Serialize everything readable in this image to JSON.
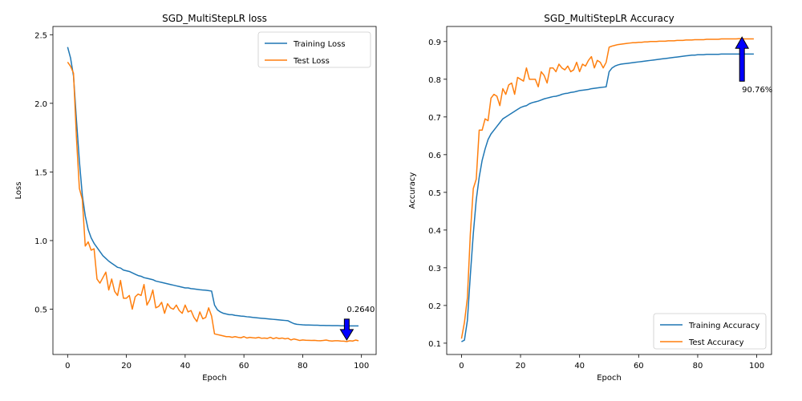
{
  "chart_data": [
    {
      "type": "line",
      "title": "SGD_MultiStepLR loss",
      "xlabel": "Epoch",
      "ylabel": "Loss",
      "xlim": [
        -5,
        105
      ],
      "ylim": [
        0.17,
        2.56
      ],
      "xticks": [
        0,
        20,
        40,
        60,
        80,
        100
      ],
      "xtick_labels": [
        "0",
        "20",
        "40",
        "60",
        "80",
        "100"
      ],
      "yticks": [
        0.5,
        1.0,
        1.5,
        2.0,
        2.5
      ],
      "ytick_labels": [
        "0.5",
        "1.0",
        "1.5",
        "2.0",
        "2.5"
      ],
      "legend_position": "upper-right",
      "series": [
        {
          "name": "Training Loss",
          "color": "#1f77b4",
          "values": [
            2.41,
            2.33,
            2.2,
            1.88,
            1.58,
            1.33,
            1.18,
            1.08,
            1.02,
            0.98,
            0.95,
            0.92,
            0.89,
            0.87,
            0.85,
            0.835,
            0.82,
            0.805,
            0.8,
            0.785,
            0.78,
            0.775,
            0.765,
            0.755,
            0.745,
            0.74,
            0.73,
            0.725,
            0.72,
            0.715,
            0.705,
            0.7,
            0.695,
            0.69,
            0.685,
            0.68,
            0.675,
            0.67,
            0.665,
            0.66,
            0.655,
            0.655,
            0.65,
            0.648,
            0.645,
            0.642,
            0.64,
            0.638,
            0.635,
            0.632,
            0.53,
            0.495,
            0.48,
            0.47,
            0.465,
            0.46,
            0.46,
            0.455,
            0.453,
            0.45,
            0.448,
            0.445,
            0.443,
            0.44,
            0.438,
            0.436,
            0.434,
            0.432,
            0.43,
            0.428,
            0.426,
            0.424,
            0.422,
            0.42,
            0.418,
            0.416,
            0.405,
            0.395,
            0.39,
            0.388,
            0.386,
            0.385,
            0.385,
            0.384,
            0.383,
            0.383,
            0.382,
            0.382,
            0.381,
            0.381,
            0.38,
            0.38,
            0.38,
            0.379,
            0.379,
            0.379,
            0.378,
            0.378,
            0.378,
            0.378
          ]
        },
        {
          "name": "Test Loss",
          "color": "#ff7f0e",
          "values": [
            2.3,
            2.27,
            2.22,
            1.75,
            1.38,
            1.3,
            0.96,
            0.99,
            0.93,
            0.94,
            0.72,
            0.69,
            0.73,
            0.77,
            0.64,
            0.72,
            0.63,
            0.6,
            0.71,
            0.58,
            0.58,
            0.6,
            0.5,
            0.59,
            0.61,
            0.6,
            0.68,
            0.53,
            0.57,
            0.64,
            0.51,
            0.52,
            0.55,
            0.47,
            0.54,
            0.51,
            0.5,
            0.53,
            0.49,
            0.47,
            0.53,
            0.48,
            0.49,
            0.44,
            0.41,
            0.48,
            0.43,
            0.44,
            0.51,
            0.45,
            0.32,
            0.315,
            0.31,
            0.305,
            0.3,
            0.3,
            0.295,
            0.3,
            0.295,
            0.292,
            0.3,
            0.29,
            0.295,
            0.292,
            0.29,
            0.295,
            0.288,
            0.29,
            0.287,
            0.295,
            0.285,
            0.292,
            0.286,
            0.29,
            0.284,
            0.288,
            0.276,
            0.283,
            0.278,
            0.272,
            0.276,
            0.274,
            0.273,
            0.272,
            0.273,
            0.271,
            0.27,
            0.272,
            0.275,
            0.27,
            0.268,
            0.27,
            0.27,
            0.268,
            0.267,
            0.264,
            0.27,
            0.268,
            0.275,
            0.27
          ]
        }
      ],
      "annotation": {
        "text": "0.2640",
        "x": 95,
        "y": 0.264,
        "arrow_direction": "down",
        "arrow_color": "#0000ff"
      }
    },
    {
      "type": "line",
      "title": "SGD_MultiStepLR Accuracy",
      "xlabel": "Epoch",
      "ylabel": "Accuracy",
      "xlim": [
        -5,
        105
      ],
      "ylim": [
        0.07,
        0.94
      ],
      "xticks": [
        0,
        20,
        40,
        60,
        80,
        100
      ],
      "xtick_labels": [
        "0",
        "20",
        "40",
        "60",
        "80",
        "100"
      ],
      "yticks": [
        0.1,
        0.2,
        0.3,
        0.4,
        0.5,
        0.6,
        0.7,
        0.8,
        0.9
      ],
      "ytick_labels": [
        "0.1",
        "0.2",
        "0.3",
        "0.4",
        "0.5",
        "0.6",
        "0.7",
        "0.8",
        "0.9"
      ],
      "legend_position": "lower-right",
      "series": [
        {
          "name": "Training Accuracy",
          "color": "#1f77b4",
          "values": [
            0.104,
            0.108,
            0.16,
            0.28,
            0.39,
            0.48,
            0.54,
            0.585,
            0.615,
            0.64,
            0.655,
            0.665,
            0.675,
            0.685,
            0.695,
            0.7,
            0.705,
            0.71,
            0.715,
            0.72,
            0.725,
            0.728,
            0.73,
            0.735,
            0.738,
            0.74,
            0.742,
            0.745,
            0.748,
            0.75,
            0.752,
            0.754,
            0.755,
            0.757,
            0.76,
            0.762,
            0.763,
            0.765,
            0.766,
            0.768,
            0.77,
            0.771,
            0.772,
            0.773,
            0.775,
            0.776,
            0.777,
            0.778,
            0.779,
            0.78,
            0.82,
            0.83,
            0.835,
            0.838,
            0.84,
            0.841,
            0.842,
            0.843,
            0.844,
            0.845,
            0.846,
            0.847,
            0.848,
            0.849,
            0.85,
            0.851,
            0.852,
            0.853,
            0.854,
            0.855,
            0.856,
            0.857,
            0.858,
            0.859,
            0.86,
            0.861,
            0.862,
            0.863,
            0.864,
            0.864,
            0.865,
            0.865,
            0.865,
            0.866,
            0.866,
            0.866,
            0.866,
            0.866,
            0.867,
            0.867,
            0.867,
            0.867,
            0.867,
            0.867,
            0.867,
            0.867,
            0.867,
            0.867,
            0.867,
            0.867
          ]
        },
        {
          "name": "Test Accuracy",
          "color": "#ff7f0e",
          "values": [
            0.112,
            0.155,
            0.22,
            0.39,
            0.51,
            0.535,
            0.665,
            0.665,
            0.695,
            0.69,
            0.75,
            0.76,
            0.755,
            0.73,
            0.775,
            0.76,
            0.785,
            0.79,
            0.76,
            0.805,
            0.8,
            0.795,
            0.83,
            0.8,
            0.8,
            0.8,
            0.78,
            0.82,
            0.81,
            0.79,
            0.83,
            0.83,
            0.82,
            0.84,
            0.83,
            0.825,
            0.835,
            0.82,
            0.825,
            0.845,
            0.82,
            0.84,
            0.835,
            0.85,
            0.86,
            0.83,
            0.85,
            0.845,
            0.83,
            0.845,
            0.885,
            0.888,
            0.89,
            0.892,
            0.893,
            0.894,
            0.895,
            0.896,
            0.897,
            0.897,
            0.898,
            0.898,
            0.899,
            0.899,
            0.9,
            0.9,
            0.9,
            0.901,
            0.901,
            0.901,
            0.902,
            0.902,
            0.902,
            0.903,
            0.903,
            0.903,
            0.904,
            0.904,
            0.904,
            0.905,
            0.905,
            0.905,
            0.905,
            0.906,
            0.906,
            0.906,
            0.906,
            0.906,
            0.907,
            0.907,
            0.907,
            0.907,
            0.907,
            0.907,
            0.9076,
            0.9076,
            0.907,
            0.907,
            0.907,
            0.907
          ]
        }
      ],
      "annotation": {
        "text": "90.76%",
        "x": 95,
        "y": 0.9076,
        "arrow_direction": "up",
        "arrow_color": "#0000ff"
      }
    }
  ]
}
